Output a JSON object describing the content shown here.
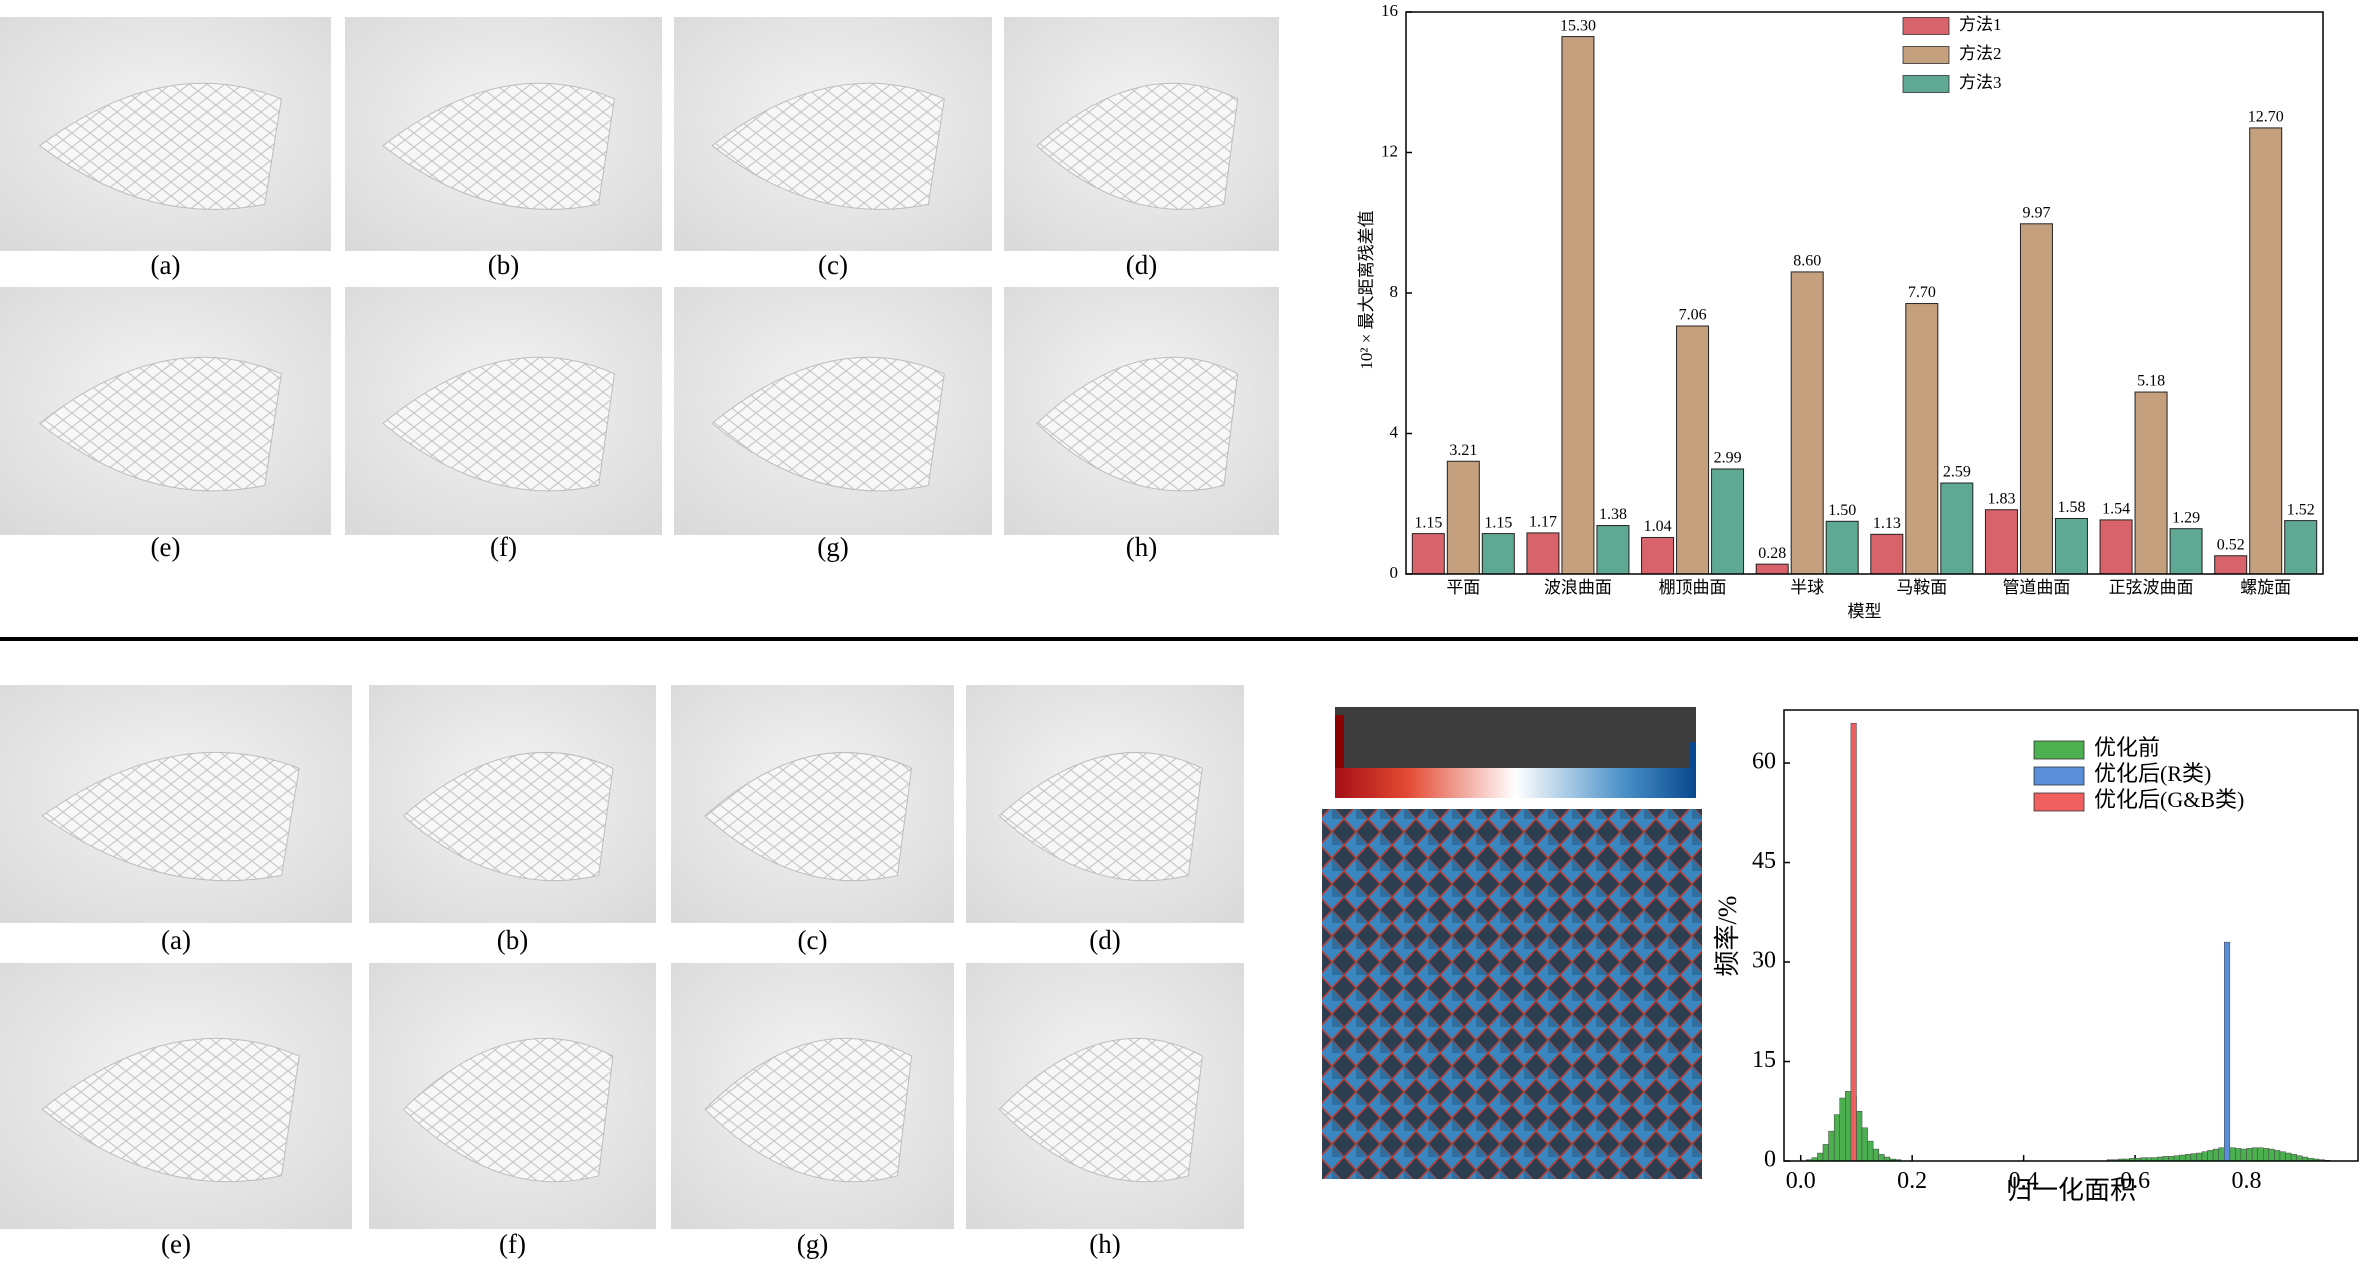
{
  "panels_top": {
    "labels": [
      "(a)",
      "(b)",
      "(c)",
      "(d)",
      "(e)",
      "(f)",
      "(g)",
      "(h)"
    ]
  },
  "panels_bottom": {
    "labels": [
      "(a)",
      "(b)",
      "(c)",
      "(d)",
      "(e)",
      "(f)",
      "(g)",
      "(h)"
    ]
  },
  "chart_data": [
    {
      "type": "bar",
      "ylabel": "10² × 最大距离残差值",
      "xlabel": "模型",
      "categories": [
        "平面",
        "波浪曲面",
        "棚顶曲面",
        "半球",
        "马鞍面",
        "管道曲面",
        "正弦波曲面",
        "螺旋面"
      ],
      "series": [
        {
          "name": "方法1",
          "color": "#d9636a",
          "values": [
            1.15,
            1.17,
            1.04,
            0.28,
            1.13,
            1.83,
            1.54,
            0.52
          ],
          "value_labels": [
            "1.15",
            "1.17",
            "1.04",
            "0.28",
            "1.13",
            "1.83",
            "1.54",
            "0.52"
          ]
        },
        {
          "name": "方法2",
          "color": "#c4a07e",
          "values": [
            3.21,
            15.3,
            7.06,
            8.6,
            7.7,
            9.97,
            5.18,
            12.7
          ],
          "value_labels": [
            "3.21",
            "15.30",
            "7.06",
            "8.60",
            "7.70",
            "9.97",
            "5.18",
            "12.70"
          ]
        },
        {
          "name": "方法3",
          "color": "#5fa894",
          "values": [
            1.15,
            1.38,
            2.99,
            1.5,
            2.59,
            1.58,
            1.29,
            1.52
          ],
          "value_labels": [
            "1.15",
            "1.38",
            "2.99",
            "1.50",
            "2.59",
            "1.58",
            "1.29",
            "1.52"
          ]
        }
      ],
      "ylim": [
        0,
        16
      ],
      "yticks": [
        0,
        4,
        8,
        12,
        16
      ],
      "legend": "upper center"
    },
    {
      "type": "histogram",
      "ylabel": "频率/%",
      "xlabel": "归一化面积",
      "bins": [
        0,
        0.01,
        0.02,
        0.03,
        0.04,
        0.05,
        0.06,
        0.07,
        0.08,
        0.09,
        0.1,
        0.11,
        0.12,
        0.13,
        0.14,
        0.15,
        0.16,
        0.17,
        0.18,
        0.19,
        0.2,
        0.21,
        0.22,
        0.23,
        0.24,
        0.25,
        0.26,
        0.27,
        0.28,
        0.29,
        0.3,
        0.31,
        0.32,
        0.33,
        0.34,
        0.35,
        0.36,
        0.37,
        0.38,
        0.39,
        0.4,
        0.41,
        0.42,
        0.43,
        0.44,
        0.45,
        0.46,
        0.47,
        0.48,
        0.49,
        0.5,
        0.51,
        0.52,
        0.53,
        0.54,
        0.55,
        0.56,
        0.57,
        0.58,
        0.59,
        0.6,
        0.61,
        0.62,
        0.63,
        0.64,
        0.65,
        0.66,
        0.67,
        0.68,
        0.69,
        0.7,
        0.71,
        0.72,
        0.73,
        0.74,
        0.75,
        0.76,
        0.77,
        0.78,
        0.79,
        0.8,
        0.81,
        0.82,
        0.83,
        0.84,
        0.85,
        0.86,
        0.87,
        0.88,
        0.89,
        0.9,
        0.91,
        0.92,
        0.93,
        0.94,
        0.95,
        0.96,
        0.97,
        0.98,
        0.99,
        1.0
      ],
      "series": [
        {
          "name": "优化前",
          "color": "#4caf50",
          "values": [
            0,
            0.2,
            0.5,
            1.2,
            2.5,
            4.5,
            7,
            9.5,
            10.5,
            9.8,
            7.5,
            5,
            3,
            1.8,
            1,
            0.6,
            0.3,
            0.2,
            0,
            0,
            0,
            0,
            0,
            0,
            0,
            0,
            0,
            0,
            0,
            0,
            0,
            0,
            0,
            0,
            0,
            0,
            0,
            0,
            0,
            0,
            0,
            0,
            0,
            0,
            0,
            0,
            0,
            0,
            0,
            0,
            0,
            0,
            0,
            0,
            0,
            0.2,
            0.2,
            0.3,
            0.3,
            0.4,
            0.4,
            0.5,
            0.5,
            0.5,
            0.6,
            0.7,
            0.7,
            0.8,
            0.9,
            1.0,
            1.1,
            1.2,
            1.4,
            1.6,
            1.8,
            2.0,
            2.1,
            2.0,
            1.9,
            1.8,
            1.9,
            2.0,
            2.0,
            1.9,
            1.8,
            1.6,
            1.4,
            1.2,
            1.0,
            0.8,
            0.6,
            0.4,
            0.3,
            0.2,
            0.1,
            0,
            0,
            0,
            0,
            0
          ]
        },
        {
          "name": "优化后(R类)",
          "color": "#5b8fd9",
          "values": [
            0,
            0,
            0,
            0,
            0,
            0,
            0,
            0,
            0,
            0,
            0,
            0,
            0,
            0,
            0,
            0,
            0,
            0,
            0,
            0,
            0,
            0,
            0,
            0,
            0,
            0,
            0,
            0,
            0,
            0,
            0,
            0,
            0,
            0,
            0,
            0,
            0,
            0,
            0,
            0,
            0,
            0,
            0,
            0,
            0,
            0,
            0,
            0,
            0,
            0,
            0,
            0,
            0,
            0,
            0,
            0,
            0,
            0,
            0,
            0,
            0,
            0,
            0,
            0,
            0,
            0,
            0,
            0,
            0,
            0,
            0,
            0,
            0,
            0,
            0,
            0,
            33,
            0,
            0,
            0,
            0,
            0,
            0,
            0,
            0,
            0,
            0,
            0,
            0,
            0,
            0,
            0,
            0,
            0,
            0,
            0,
            0,
            0,
            0,
            0
          ]
        },
        {
          "name": "优化后(G&B类)",
          "color": "#f06060",
          "values": [
            0,
            0,
            0,
            0,
            0,
            0,
            0,
            0,
            0,
            66,
            0,
            0,
            0,
            0,
            0,
            0,
            0,
            0,
            0,
            0,
            0,
            0,
            0,
            0,
            0,
            0,
            0,
            0,
            0,
            0,
            0,
            0,
            0,
            0,
            0,
            0,
            0,
            0,
            0,
            0,
            0,
            0,
            0,
            0,
            0,
            0,
            0,
            0,
            0,
            0,
            0,
            0,
            0,
            0,
            0,
            0,
            0,
            0,
            0,
            0,
            0,
            0,
            0,
            0,
            0,
            0,
            0,
            0,
            0,
            0,
            0,
            0,
            0,
            0,
            0,
            0,
            0,
            0,
            0,
            0,
            0,
            0,
            0,
            0,
            0,
            0,
            0,
            0,
            0,
            0,
            0,
            0,
            0,
            0,
            0,
            0,
            0,
            0,
            0,
            0
          ]
        }
      ],
      "xlim": [
        -0.03,
        1.0
      ],
      "xticks": [
        {
          "value": 0,
          "label": "0.0"
        },
        {
          "value": 0.2,
          "label": "0.2"
        },
        {
          "value": 0.4,
          "label": "0.4"
        },
        {
          "value": 0.6,
          "label": "0.6"
        },
        {
          "value": 0.8,
          "label": "0.8"
        }
      ],
      "ylim": [
        0,
        68
      ],
      "yticks": [
        0,
        15,
        30,
        45,
        60
      ],
      "legend": "upper right"
    }
  ]
}
